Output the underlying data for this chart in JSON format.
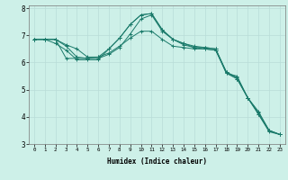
{
  "title": "",
  "xlabel": "Humidex (Indice chaleur)",
  "background_color": "#cdf0e8",
  "grid_color": "#b8ddd8",
  "line_color": "#1a7a6a",
  "xlim": [
    -0.5,
    23.5
  ],
  "ylim": [
    3,
    8.1
  ],
  "yticks": [
    3,
    4,
    5,
    6,
    7,
    8
  ],
  "xticks": [
    0,
    1,
    2,
    3,
    4,
    5,
    6,
    7,
    8,
    9,
    10,
    11,
    12,
    13,
    14,
    15,
    16,
    17,
    18,
    19,
    20,
    21,
    22,
    23
  ],
  "series": [
    [
      6.85,
      6.85,
      6.85,
      6.65,
      6.5,
      6.2,
      6.2,
      6.5,
      6.9,
      7.4,
      7.75,
      7.8,
      7.2,
      6.85,
      6.7,
      6.6,
      6.55,
      6.5,
      5.6,
      5.4,
      4.7,
      4.2,
      3.5,
      3.35
    ],
    [
      6.85,
      6.85,
      6.7,
      6.45,
      6.1,
      6.1,
      6.1,
      6.5,
      6.9,
      7.4,
      7.75,
      7.8,
      7.2,
      6.85,
      6.7,
      6.55,
      6.55,
      6.5,
      5.65,
      5.4,
      4.7,
      4.1,
      3.45,
      3.35
    ],
    [
      6.85,
      6.85,
      6.85,
      6.6,
      6.2,
      6.15,
      6.15,
      6.3,
      6.55,
      7.05,
      7.6,
      7.75,
      7.15,
      6.85,
      6.65,
      6.55,
      6.5,
      6.45,
      5.65,
      5.45,
      4.7,
      4.1,
      3.5,
      3.35
    ],
    [
      6.85,
      6.85,
      6.85,
      6.15,
      6.15,
      6.15,
      6.2,
      6.35,
      6.6,
      6.9,
      7.15,
      7.15,
      6.85,
      6.6,
      6.55,
      6.5,
      6.5,
      6.45,
      5.6,
      5.5,
      4.7,
      4.15,
      3.5,
      3.35
    ]
  ]
}
